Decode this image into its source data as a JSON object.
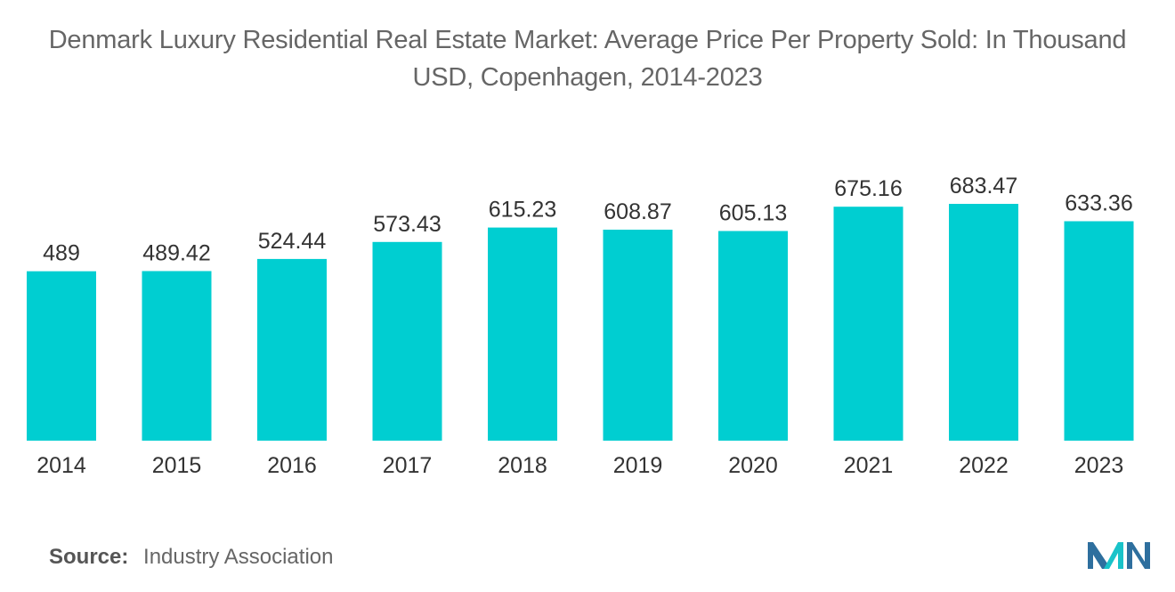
{
  "chart_data": {
    "type": "bar",
    "title": "Denmark Luxury Residential Real Estate Market: Average Price Per Property Sold: In Thousand USD, Copenhagen, 2014-2023",
    "categories": [
      "2014",
      "2015",
      "2016",
      "2017",
      "2018",
      "2019",
      "2020",
      "2021",
      "2022",
      "2023"
    ],
    "values": [
      489,
      489.42,
      524.44,
      573.43,
      615.23,
      608.87,
      605.13,
      675.16,
      683.47,
      633.36
    ],
    "value_labels": [
      "489",
      "489.42",
      "524.44",
      "573.43",
      "615.23",
      "608.87",
      "605.13",
      "675.16",
      "683.47",
      "633.36"
    ],
    "xlabel": "",
    "ylabel": "",
    "ylim": [
      0,
      683.47
    ],
    "grid": false,
    "legend": "none",
    "bar_color": "#00CED1"
  },
  "source": {
    "prefix": "Source:",
    "text": "Industry Association"
  },
  "colors": {
    "bar": "#00CED1",
    "logo_dark": "#2E6F9E",
    "logo_light": "#19C3C9"
  }
}
